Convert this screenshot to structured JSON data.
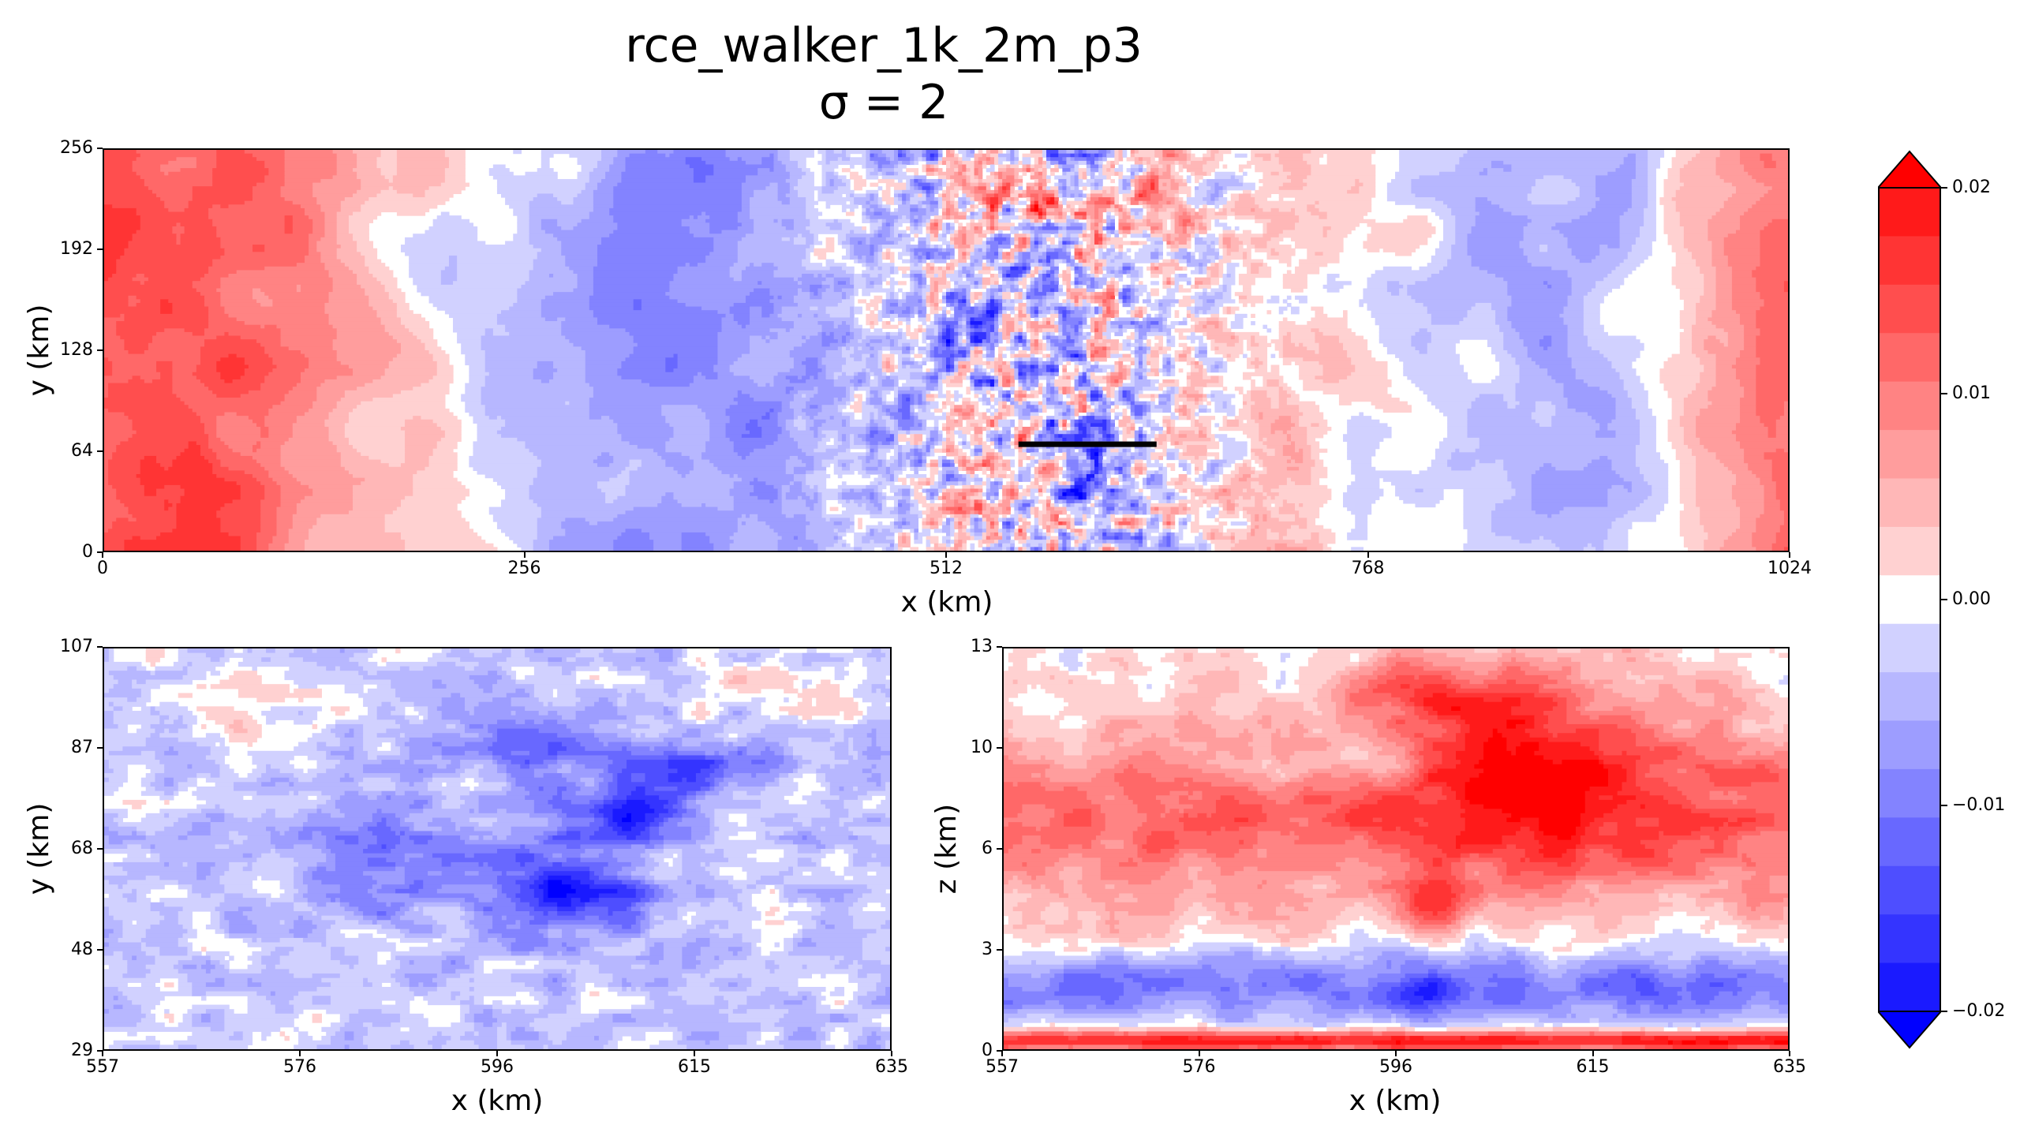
{
  "title": {
    "line1": "rce_walker_1k_2m_p3",
    "line2": "σ = 2"
  },
  "chart_data": [
    {
      "type": "heatmap",
      "panel": "top",
      "xlabel": "x (km)",
      "ylabel": "y (km)",
      "xlim": [
        0,
        1024
      ],
      "ylim": [
        0,
        256
      ],
      "xticks": [
        "0",
        "256",
        "512",
        "768",
        "1024"
      ],
      "yticks": [
        "0",
        "64",
        "128",
        "192",
        "256"
      ],
      "cross_section_line": {
        "x": [
          556,
          640
        ],
        "y": [
          68,
          68
        ]
      },
      "dominant_pattern": "positive (red) near x<160 and x>980; negative (blue) 260-460 and 540-660; mixed noisy field 440-700"
    },
    {
      "type": "heatmap",
      "panel": "bottom-left",
      "xlabel": "x (km)",
      "ylabel": "y (km)",
      "xlim": [
        557,
        635
      ],
      "ylim": [
        29,
        107
      ],
      "xticks": [
        "557",
        "576",
        "596",
        "615",
        "635"
      ],
      "yticks": [
        "29",
        "48",
        "68",
        "87",
        "107"
      ],
      "dominant_pattern": "strong negative core near x=598-610, y=60-90"
    },
    {
      "type": "heatmap",
      "panel": "bottom-right",
      "xlabel": "x (km)",
      "ylabel": "z (km)",
      "xlim": [
        557,
        635
      ],
      "ylim": [
        0,
        14
      ],
      "xticks": [
        "557",
        "576",
        "596",
        "615",
        "635"
      ],
      "yticks": [
        "0",
        "3",
        "6",
        "10",
        "13"
      ],
      "dominant_pattern": "positive upper layer (z 5-14) peaking near x=605-620; negative layer z 1-4; thin positive surface layer"
    }
  ],
  "colorbar": {
    "min": -0.02,
    "max": 0.02,
    "extend": "both",
    "levels": 19,
    "tick_labels": [
      "0.02",
      "0.01",
      "0.00",
      "−0.01",
      "−0.02"
    ],
    "tick_values": [
      0.02,
      0.01,
      0.0,
      -0.01,
      -0.02
    ]
  },
  "colors": {
    "max_red": "#ff0000",
    "max_blue": "#0000ff",
    "neutral": "#ffffff"
  }
}
